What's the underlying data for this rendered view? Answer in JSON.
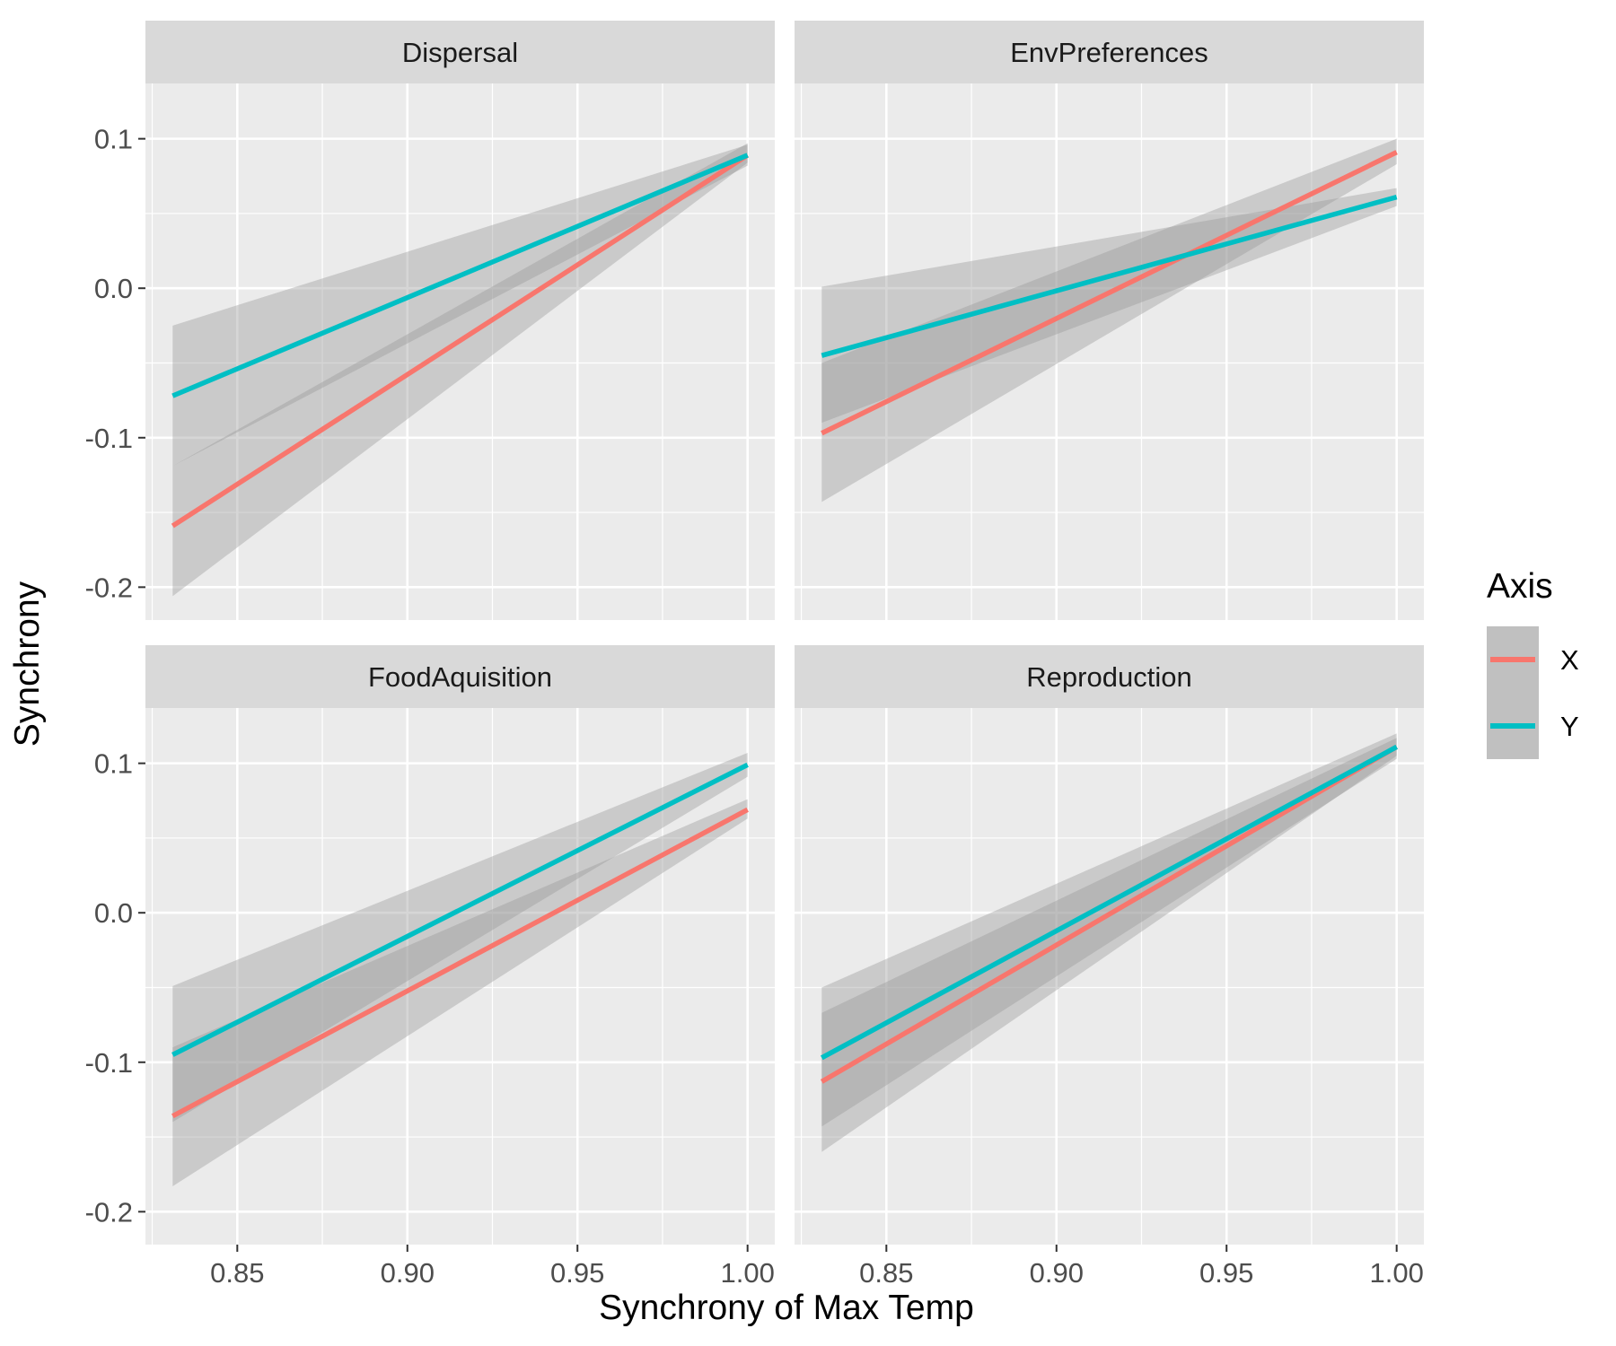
{
  "chart_data": {
    "type": "line",
    "xlabel": "Synchrony of Max Temp",
    "ylabel": "Synchrony",
    "xlim": [
      0.823,
      1.008
    ],
    "ylim": [
      -0.222,
      0.137
    ],
    "x_ticks": [
      0.85,
      0.9,
      0.95,
      1.0
    ],
    "x_tick_labels": [
      "0.85",
      "0.90",
      "0.95",
      "1.00"
    ],
    "y_ticks": [
      -0.2,
      -0.1,
      0.0,
      0.1
    ],
    "y_tick_labels": [
      "-0.2",
      "-0.1",
      "0.0",
      "0.1"
    ],
    "grid": true,
    "legend": {
      "title": "Axis",
      "placement": "right",
      "entries": [
        {
          "label": "X",
          "color": "#F8766D"
        },
        {
          "label": "Y",
          "color": "#00BFC4"
        }
      ]
    },
    "panels": [
      {
        "title": "Dispersal",
        "series": [
          {
            "name": "X",
            "color": "#F8766D",
            "x": [
              0.831,
              1.0
            ],
            "y": [
              -0.159,
              0.089
            ],
            "ci_lower": [
              -0.206,
              0.084
            ],
            "ci_upper": [
              -0.119,
              0.097
            ]
          },
          {
            "name": "Y",
            "color": "#00BFC4",
            "x": [
              0.831,
              1.0
            ],
            "y": [
              -0.072,
              0.089
            ],
            "ci_lower": [
              -0.119,
              0.082
            ],
            "ci_upper": [
              -0.025,
              0.096
            ]
          }
        ]
      },
      {
        "title": "EnvPreferences",
        "series": [
          {
            "name": "X",
            "color": "#F8766D",
            "x": [
              0.831,
              1.0
            ],
            "y": [
              -0.097,
              0.091
            ],
            "ci_lower": [
              -0.143,
              0.083
            ],
            "ci_upper": [
              -0.05,
              0.1
            ]
          },
          {
            "name": "Y",
            "color": "#00BFC4",
            "x": [
              0.831,
              1.0
            ],
            "y": [
              -0.045,
              0.061
            ],
            "ci_lower": [
              -0.09,
              0.055
            ],
            "ci_upper": [
              0.001,
              0.067
            ]
          }
        ]
      },
      {
        "title": "FoodAquisition",
        "series": [
          {
            "name": "X",
            "color": "#F8766D",
            "x": [
              0.831,
              1.0
            ],
            "y": [
              -0.136,
              0.069
            ],
            "ci_lower": [
              -0.183,
              0.063
            ],
            "ci_upper": [
              -0.09,
              0.076
            ]
          },
          {
            "name": "Y",
            "color": "#00BFC4",
            "x": [
              0.831,
              1.0
            ],
            "y": [
              -0.095,
              0.099
            ],
            "ci_lower": [
              -0.14,
              0.091
            ],
            "ci_upper": [
              -0.049,
              0.107
            ]
          }
        ]
      },
      {
        "title": "Reproduction",
        "series": [
          {
            "name": "X",
            "color": "#F8766D",
            "x": [
              0.831,
              1.0
            ],
            "y": [
              -0.113,
              0.111
            ],
            "ci_lower": [
              -0.16,
              0.105
            ],
            "ci_upper": [
              -0.067,
              0.117
            ]
          },
          {
            "name": "Y",
            "color": "#00BFC4",
            "x": [
              0.831,
              1.0
            ],
            "y": [
              -0.097,
              0.111
            ],
            "ci_lower": [
              -0.143,
              0.103
            ],
            "ci_upper": [
              -0.05,
              0.12
            ]
          }
        ]
      }
    ]
  }
}
